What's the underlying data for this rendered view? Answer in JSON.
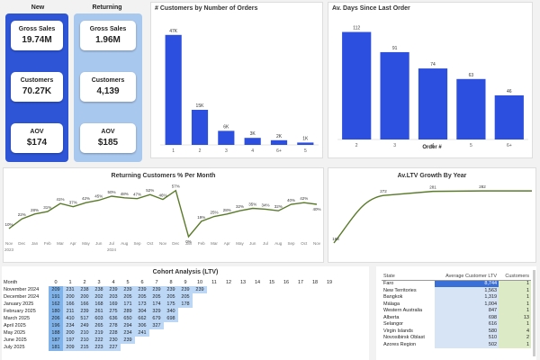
{
  "kpi": {
    "new_header": "New",
    "returning_header": "Returning",
    "new": [
      {
        "label": "Gross Sales",
        "value": "19.74M"
      },
      {
        "label": "Customers",
        "value": "70.27K"
      },
      {
        "label": "AOV",
        "value": "$174"
      }
    ],
    "returning": [
      {
        "label": "Gross Sales",
        "value": "1.96M"
      },
      {
        "label": "Customers",
        "value": "4,139"
      },
      {
        "label": "AOV",
        "value": "$185"
      }
    ],
    "colors": {
      "new_bg": "#2d55d6",
      "returning_bg": "#a9c8ee"
    }
  },
  "chart_data": [
    {
      "type": "bar",
      "title": "# Customers by Number of Orders",
      "categories": [
        "1",
        "2",
        "3",
        "4",
        "6+",
        "5"
      ],
      "values": [
        47,
        15,
        6,
        3,
        2,
        1
      ],
      "data_labels": [
        "47K",
        "15K",
        "6K",
        "3K",
        "2K",
        "1K"
      ],
      "ylim": [
        0,
        50
      ],
      "color": "#2d4fe0"
    },
    {
      "type": "bar",
      "title": "Av. Days Since Last Order",
      "xlabel": "Order #",
      "categories": [
        "2",
        "3",
        "4",
        "5",
        "6+"
      ],
      "values": [
        112,
        91,
        74,
        63,
        46
      ],
      "ylim": [
        0,
        120
      ],
      "color": "#2d4fe0"
    },
    {
      "type": "line",
      "title": "Returning Customers % Per Month",
      "x": [
        "Nov",
        "Dec",
        "Jan",
        "Feb",
        "Mar",
        "Apr",
        "May",
        "Jun",
        "Jul",
        "Aug",
        "Sep",
        "Oct",
        "Nov",
        "Dec",
        "Jan",
        "Feb",
        "Mar",
        "Apr",
        "May",
        "Jun",
        "Jul",
        "Aug",
        "Sep",
        "Oct",
        "Nov"
      ],
      "year_labels": [
        {
          "index": 0,
          "text": "2023"
        },
        {
          "index": 8,
          "text": "2024"
        }
      ],
      "values": [
        10,
        22,
        28,
        31,
        41,
        37,
        42,
        45,
        50,
        48,
        47,
        52,
        46,
        57,
        0,
        19,
        25,
        28,
        32,
        35,
        34,
        32,
        40,
        42,
        40
      ],
      "data_labels": [
        "10%",
        "22%",
        "28%",
        "31%",
        "41%",
        "37%",
        "42%",
        "45%",
        "50%",
        "48%",
        "47%",
        "52%",
        "46%",
        "57%",
        "0%",
        "19%",
        "25%",
        "28%",
        "32%",
        "35%",
        "34%",
        "32%",
        "40%",
        "42%",
        "40%"
      ],
      "ylim": [
        0,
        60
      ],
      "color": "#5a7a2a"
    },
    {
      "type": "line",
      "title": "Av.LTV Growth By Year",
      "x": [
        "0",
        "1",
        "2",
        "3",
        "4"
      ],
      "values": [
        168,
        272,
        281,
        282,
        282
      ],
      "data_labels": [
        "168",
        "272",
        "281",
        "282",
        ""
      ],
      "ylim": [
        150,
        300
      ],
      "color": "#5a7a2a"
    }
  ],
  "cohort": {
    "title": "Cohort Analysis (LTV)",
    "month_header": "Month",
    "columns": [
      "0",
      "1",
      "2",
      "3",
      "4",
      "5",
      "6",
      "7",
      "8",
      "9",
      "10",
      "11",
      "12",
      "13",
      "14",
      "15",
      "16",
      "17",
      "18",
      "19"
    ],
    "rows": [
      {
        "month": "November 2024",
        "values": [
          "209",
          "231",
          "238",
          "238",
          "239",
          "239",
          "239",
          "239",
          "239",
          "239",
          "239"
        ]
      },
      {
        "month": "December 2024",
        "values": [
          "191",
          "200",
          "200",
          "202",
          "203",
          "205",
          "205",
          "205",
          "205",
          "205"
        ]
      },
      {
        "month": "January 2025",
        "values": [
          "162",
          "166",
          "166",
          "168",
          "169",
          "171",
          "173",
          "174",
          "175",
          "178"
        ]
      },
      {
        "month": "February 2025",
        "values": [
          "180",
          "211",
          "239",
          "261",
          "275",
          "289",
          "304",
          "329",
          "340"
        ]
      },
      {
        "month": "March 2025",
        "values": [
          "206",
          "410",
          "517",
          "603",
          "636",
          "650",
          "662",
          "679",
          "698"
        ]
      },
      {
        "month": "April 2025",
        "values": [
          "196",
          "234",
          "249",
          "265",
          "278",
          "294",
          "306",
          "327"
        ]
      },
      {
        "month": "May 2025",
        "values": [
          "188",
          "200",
          "210",
          "219",
          "228",
          "234",
          "241"
        ]
      },
      {
        "month": "June 2025",
        "values": [
          "187",
          "197",
          "210",
          "222",
          "230",
          "239"
        ]
      },
      {
        "month": "July 2025",
        "values": [
          "181",
          "209",
          "215",
          "223",
          "227"
        ]
      }
    ]
  },
  "states": {
    "headers": [
      "State",
      "Average Customer LTV",
      "Customers"
    ],
    "rows": [
      {
        "state": "Faro",
        "ltv": "8,744",
        "customers": "1"
      },
      {
        "state": "New Territories",
        "ltv": "1,563",
        "customers": "1"
      },
      {
        "state": "Bangkok",
        "ltv": "1,319",
        "customers": "1"
      },
      {
        "state": "Málaga",
        "ltv": "1,004",
        "customers": "1"
      },
      {
        "state": "Western Australia",
        "ltv": "847",
        "customers": "1"
      },
      {
        "state": "Alberta",
        "ltv": "698",
        "customers": "13"
      },
      {
        "state": "Selangor",
        "ltv": "616",
        "customers": "1"
      },
      {
        "state": "Virgin Islands",
        "ltv": "580",
        "customers": "4"
      },
      {
        "state": "Novosibirsk Oblast",
        "ltv": "510",
        "customers": "2"
      },
      {
        "state": "Azores Region",
        "ltv": "502",
        "customers": "1"
      }
    ]
  }
}
